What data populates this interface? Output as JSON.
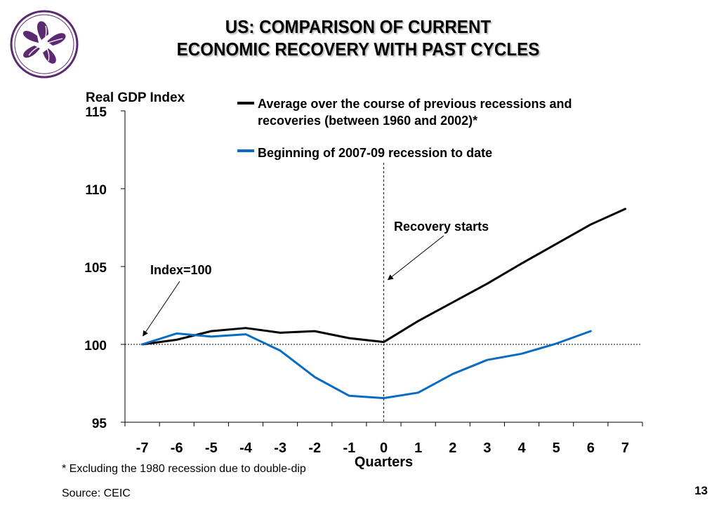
{
  "title": {
    "line1": "US: COMPARISON OF CURRENT",
    "line2": "ECONOMIC RECOVERY WITH PAST CYCLES"
  },
  "colors": {
    "brand_purple": "#5b2a72",
    "previous_series": "#000000",
    "current_series": "#0a6bc2"
  },
  "chart_data": {
    "type": "line",
    "ylabel": "Real GDP Index",
    "xlabel": "Quarters",
    "ylim": [
      95,
      115
    ],
    "yticks": [
      95,
      100,
      105,
      110,
      115
    ],
    "xlim": [
      -7.5,
      7.5
    ],
    "x": [
      -7,
      -6,
      -5,
      -4,
      -3,
      -2,
      -1,
      0,
      1,
      2,
      3,
      4,
      5,
      6,
      7
    ],
    "series": [
      {
        "name": "Average over the course of previous recessions and recoveries (between 1960 and 2002)*",
        "name_lines": [
          "Average over the course of previous recessions and",
          "recoveries (between 1960 and 2002)*"
        ],
        "color": "#000000",
        "values": [
          100.0,
          100.3,
          100.85,
          101.05,
          100.75,
          100.85,
          100.4,
          100.15,
          101.5,
          102.7,
          103.9,
          105.2,
          106.45,
          107.7,
          108.7
        ]
      },
      {
        "name": "Beginning of 2007-09 recession to date",
        "name_lines": [
          "Beginning of 2007-09 recession to date"
        ],
        "color": "#0a6bc2",
        "values": [
          100.0,
          100.7,
          100.5,
          100.65,
          99.6,
          97.9,
          96.7,
          96.55,
          96.9,
          98.1,
          99.0,
          99.4,
          100.05,
          100.85,
          null
        ]
      }
    ],
    "reference_lines": {
      "horizontal_value": 100,
      "vertical_value": 0
    },
    "annotations": [
      {
        "text": "Index=100",
        "target": {
          "x": -7,
          "y": 100
        }
      },
      {
        "text": "Recovery starts",
        "target": {
          "x": 0,
          "y": 104.15
        }
      }
    ],
    "legend_position": "top"
  },
  "footnote": "* Excluding the 1980 recession due to double-dip",
  "source": "Source: CEIC",
  "page_number": "13"
}
